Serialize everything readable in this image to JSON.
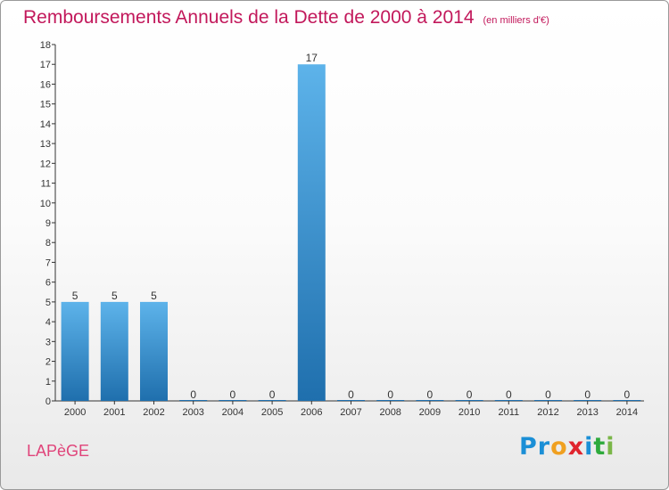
{
  "title": "Remboursements Annuels de la Dette de 2000 à 2014",
  "subtitle": "(en milliers d'€)",
  "commune": "LAPèGE",
  "logo": "Proxiti",
  "colors": {
    "bar_light": "#5aaee6",
    "bar_dark": "#1f6fad",
    "title": "#c2185b"
  },
  "chart_data": {
    "type": "bar",
    "categories": [
      "2000",
      "2001",
      "2002",
      "2003",
      "2004",
      "2005",
      "2006",
      "2007",
      "2008",
      "2009",
      "2010",
      "2011",
      "2012",
      "2013",
      "2014"
    ],
    "values": [
      5,
      5,
      5,
      0,
      0,
      0,
      17,
      0,
      0,
      0,
      0,
      0,
      0,
      0,
      0
    ],
    "ylim": [
      0,
      18
    ],
    "yticks": [
      0,
      1,
      2,
      3,
      4,
      5,
      6,
      7,
      8,
      9,
      10,
      11,
      12,
      13,
      14,
      15,
      16,
      17,
      18
    ],
    "grid": false
  }
}
